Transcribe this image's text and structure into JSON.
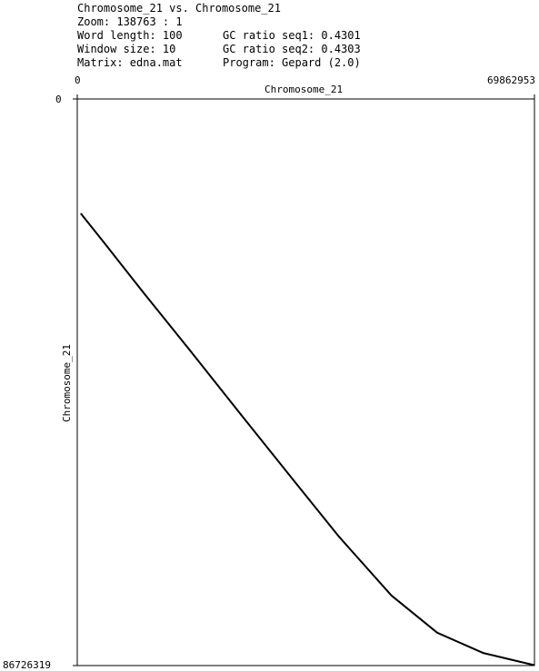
{
  "header": {
    "title": "Chromosome_21 vs. Chromosome_21",
    "zoom": "Zoom: 138763 : 1",
    "word_length": "Word length: 100",
    "window_size": "Window size: 10",
    "matrix": "Matrix: edna.mat",
    "gc_ratio_seq1": "GC ratio seq1: 0.4301",
    "gc_ratio_seq2": "GC ratio seq2: 0.4303",
    "program": "Program: Gepard (2.0)"
  },
  "chart_data": {
    "type": "scatter",
    "title": "Chromosome_21 vs. Chromosome_21",
    "xlabel": "Chromosome_21",
    "ylabel": "Chromosome_21",
    "xlim": [
      0,
      69862953
    ],
    "ylim": [
      0,
      86726319
    ],
    "x_tick_labels": [
      "0",
      "69862953"
    ],
    "y_tick_labels": [
      "0",
      "86726319"
    ],
    "y_axis_inverted": true,
    "grid": false,
    "series": [
      {
        "x": [
          600000,
          4500000,
          10000000,
          17000000,
          25000000,
          33000000,
          40000000,
          48000000,
          55000000,
          62000000,
          69800000
        ],
        "y": [
          17600000,
          22500000,
          29500000,
          38200000,
          48300000,
          58300000,
          67000000,
          76000000,
          81700000,
          84800000,
          86650000
        ],
        "color": "#000000"
      }
    ]
  }
}
